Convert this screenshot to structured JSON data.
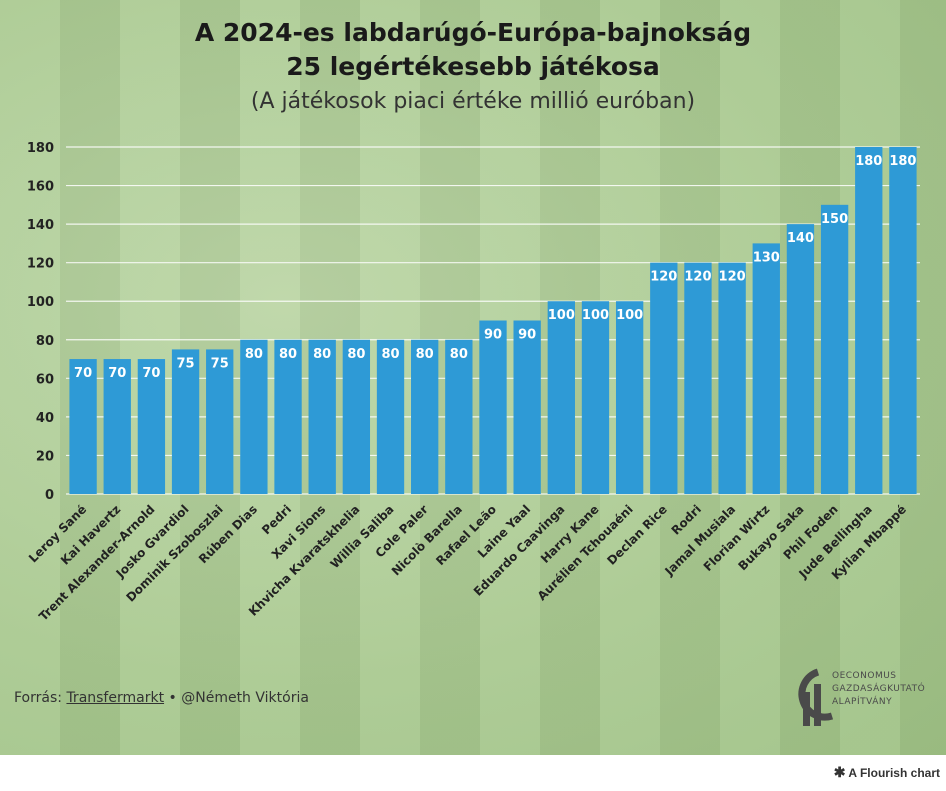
{
  "chart_data": {
    "type": "bar",
    "title_line1": "A 2024-es labdarúgó-Európa-bajnokság",
    "title_line2": "25 legértékesebb játékosa",
    "subtitle": "(A játékosok piaci értéke millió euróban)",
    "xlabel": "",
    "ylabel": "",
    "ylim": [
      0,
      180
    ],
    "yticks": [
      0,
      20,
      40,
      60,
      80,
      100,
      120,
      140,
      160,
      180
    ],
    "grid": true,
    "categories": [
      "Leroy Sané",
      "Kai Havertz",
      "Trent Alexander-Arnold",
      "Josko Gvardiol",
      "Dominik Szoboszlai",
      "Rúben Dias",
      "Pedri",
      "Xavi Sions",
      "Khvicha Kvaratskhelia",
      "Willia Saliba",
      "Cole Paler",
      "Nicolò Barella",
      "Rafael Leão",
      "Laine Yaal",
      "Eduardo Caavinga",
      "Harry Kane",
      "Aurélien Tchouaéni",
      "Declan Rice",
      "Rodri",
      "Jamal Musiala",
      "Florian Wirtz",
      "Bukayo Saka",
      "Phil Foden",
      "Jude Bellingha",
      "Kylian Mbappé"
    ],
    "values": [
      70,
      70,
      70,
      75,
      75,
      80,
      80,
      80,
      80,
      80,
      80,
      80,
      90,
      90,
      100,
      100,
      100,
      120,
      120,
      120,
      130,
      140,
      150,
      180,
      180
    ],
    "bar_color": "#2e9ad6",
    "label_color": "#ffffff"
  },
  "footer": {
    "prefix": "Forrás: ",
    "source": "Transfermarkt",
    "separator": " • ",
    "author": "@Németh Viktória"
  },
  "logo": {
    "line1": "OECONOMUS",
    "line2": "GAZDASÁGKUTATÓ",
    "line3": "ALAPÍTVÁNY"
  },
  "flourish": {
    "text": "A Flourish chart"
  }
}
